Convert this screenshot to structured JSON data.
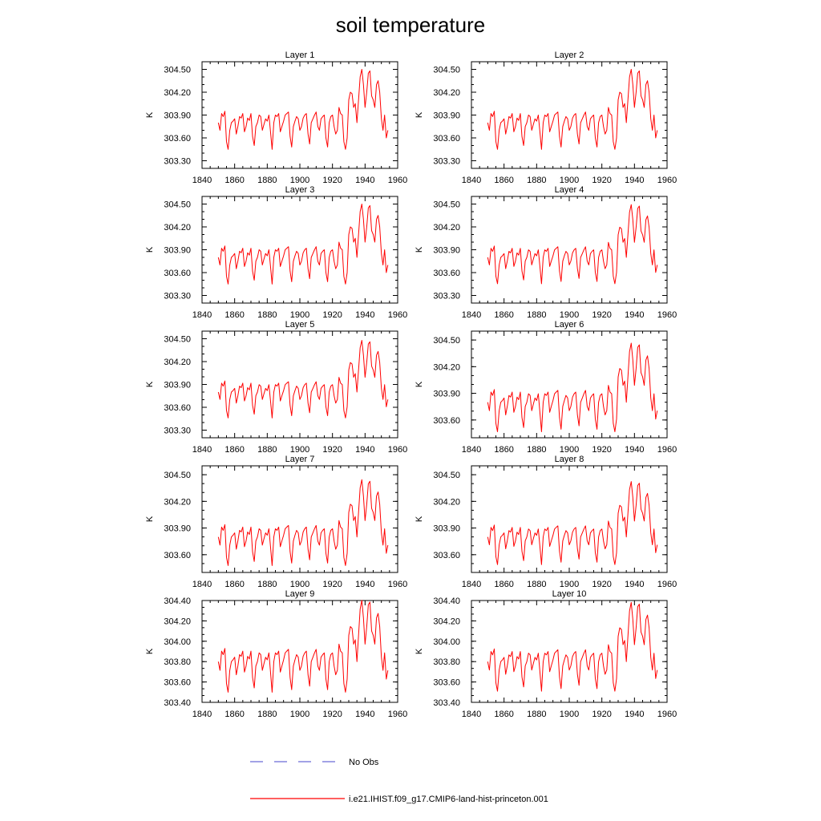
{
  "title": "soil temperature",
  "colors": {
    "model": "#ff0000",
    "obs": "#6b6bd6",
    "axis": "#000000"
  },
  "legend": [
    {
      "label": "No Obs",
      "style": "dashed",
      "color": "#6b6bd6"
    },
    {
      "label": "i.e21.IHIST.f09_g17.CMIP6-land-hist-princeton.001",
      "style": "solid",
      "color": "#ff0000"
    }
  ],
  "chart_data": [
    {
      "type": "line",
      "title": "Layer 1",
      "ylabel": "K",
      "xlim": [
        1840,
        1960
      ],
      "ylim": [
        303.2,
        304.6
      ],
      "xticks": [
        "1840",
        "1860",
        "1880",
        "1900",
        "1920",
        "1940",
        "1960"
      ],
      "yticks": [
        "303.30",
        "303.60",
        "303.90",
        "304.20",
        "304.50"
      ],
      "series_name": "i.e21.IHIST.f09_g17.CMIP6-land-hist-princeton.001",
      "scale": 1.0
    },
    {
      "type": "line",
      "title": "Layer 2",
      "ylabel": "K",
      "xlim": [
        1840,
        1960
      ],
      "ylim": [
        303.2,
        304.6
      ],
      "xticks": [
        "1840",
        "1860",
        "1880",
        "1900",
        "1920",
        "1940",
        "1960"
      ],
      "yticks": [
        "303.30",
        "303.60",
        "303.90",
        "304.20",
        "304.50"
      ],
      "series_name": "i.e21.IHIST.f09_g17.CMIP6-land-hist-princeton.001",
      "scale": 1.0
    },
    {
      "type": "line",
      "title": "Layer 3",
      "ylabel": "K",
      "xlim": [
        1840,
        1960
      ],
      "ylim": [
        303.2,
        304.6
      ],
      "xticks": [
        "1840",
        "1860",
        "1880",
        "1900",
        "1920",
        "1940",
        "1960"
      ],
      "yticks": [
        "303.30",
        "303.60",
        "303.90",
        "304.20",
        "304.50"
      ],
      "series_name": "i.e21.IHIST.f09_g17.CMIP6-land-hist-princeton.001",
      "scale": 1.0
    },
    {
      "type": "line",
      "title": "Layer 4",
      "ylabel": "K",
      "xlim": [
        1840,
        1960
      ],
      "ylim": [
        303.2,
        304.6
      ],
      "xticks": [
        "1840",
        "1860",
        "1880",
        "1900",
        "1920",
        "1940",
        "1960"
      ],
      "yticks": [
        "303.30",
        "303.60",
        "303.90",
        "304.20",
        "304.50"
      ],
      "series_name": "i.e21.IHIST.f09_g17.CMIP6-land-hist-princeton.001",
      "scale": 0.99
    },
    {
      "type": "line",
      "title": "Layer 5",
      "ylabel": "K",
      "xlim": [
        1840,
        1960
      ],
      "ylim": [
        303.2,
        304.6
      ],
      "xticks": [
        "1840",
        "1860",
        "1880",
        "1900",
        "1920",
        "1940",
        "1960"
      ],
      "yticks": [
        "303.30",
        "303.60",
        "303.90",
        "304.20",
        "304.50"
      ],
      "series_name": "i.e21.IHIST.f09_g17.CMIP6-land-hist-princeton.001",
      "scale": 0.97
    },
    {
      "type": "line",
      "title": "Layer 6",
      "ylabel": "K",
      "xlim": [
        1840,
        1960
      ],
      "ylim": [
        303.4,
        304.6
      ],
      "xticks": [
        "1840",
        "1860",
        "1880",
        "1900",
        "1920",
        "1940",
        "1960"
      ],
      "yticks": [
        "303.60",
        "303.90",
        "304.20",
        "304.50"
      ],
      "series_name": "i.e21.IHIST.f09_g17.CMIP6-land-hist-princeton.001",
      "scale": 0.95
    },
    {
      "type": "line",
      "title": "Layer 7",
      "ylabel": "K",
      "xlim": [
        1840,
        1960
      ],
      "ylim": [
        303.4,
        304.6
      ],
      "xticks": [
        "1840",
        "1860",
        "1880",
        "1900",
        "1920",
        "1940",
        "1960"
      ],
      "yticks": [
        "303.60",
        "303.90",
        "304.20",
        "304.50"
      ],
      "series_name": "i.e21.IHIST.f09_g17.CMIP6-land-hist-princeton.001",
      "scale": 0.92
    },
    {
      "type": "line",
      "title": "Layer 8",
      "ylabel": "K",
      "xlim": [
        1840,
        1960
      ],
      "ylim": [
        303.4,
        304.6
      ],
      "xticks": [
        "1840",
        "1860",
        "1880",
        "1900",
        "1920",
        "1940",
        "1960"
      ],
      "yticks": [
        "303.60",
        "303.90",
        "304.20",
        "304.50"
      ],
      "series_name": "i.e21.IHIST.f09_g17.CMIP6-land-hist-princeton.001",
      "scale": 0.89
    },
    {
      "type": "line",
      "title": "Layer 9",
      "ylabel": "K",
      "xlim": [
        1840,
        1960
      ],
      "ylim": [
        303.4,
        304.4
      ],
      "xticks": [
        "1840",
        "1860",
        "1880",
        "1900",
        "1920",
        "1940",
        "1960"
      ],
      "yticks": [
        "303.40",
        "303.60",
        "303.80",
        "304.00",
        "304.20",
        "304.40"
      ],
      "series_name": "i.e21.IHIST.f09_g17.CMIP6-land-hist-princeton.001",
      "scale": 0.86
    },
    {
      "type": "line",
      "title": "Layer 10",
      "ylabel": "K",
      "xlim": [
        1840,
        1960
      ],
      "ylim": [
        303.4,
        304.4
      ],
      "xticks": [
        "1840",
        "1860",
        "1880",
        "1900",
        "1920",
        "1940",
        "1960"
      ],
      "yticks": [
        "303.40",
        "303.60",
        "303.80",
        "304.00",
        "304.20",
        "304.40"
      ],
      "series_name": "i.e21.IHIST.f09_g17.CMIP6-land-hist-princeton.001",
      "scale": 0.83
    }
  ],
  "base_series": {
    "x": [
      1850,
      1851,
      1852,
      1853,
      1854,
      1855,
      1856,
      1857,
      1858,
      1859,
      1860,
      1861,
      1862,
      1863,
      1864,
      1865,
      1866,
      1867,
      1868,
      1869,
      1870,
      1871,
      1872,
      1873,
      1874,
      1875,
      1876,
      1877,
      1878,
      1879,
      1880,
      1881,
      1882,
      1883,
      1884,
      1885,
      1886,
      1887,
      1888,
      1889,
      1890,
      1891,
      1892,
      1893,
      1894,
      1895,
      1896,
      1897,
      1898,
      1899,
      1900,
      1901,
      1902,
      1903,
      1904,
      1905,
      1906,
      1907,
      1908,
      1909,
      1910,
      1911,
      1912,
      1913,
      1914,
      1915,
      1916,
      1917,
      1918,
      1919,
      1920,
      1921,
      1922,
      1923,
      1924,
      1925,
      1926,
      1927,
      1928,
      1929,
      1930,
      1931,
      1932,
      1933,
      1934,
      1935,
      1936,
      1937,
      1938,
      1939,
      1940,
      1941,
      1942,
      1943,
      1944,
      1945,
      1946,
      1947,
      1948,
      1949,
      1950,
      1951,
      1952,
      1953,
      1954
    ],
    "anomaly": [
      0.0,
      -0.1,
      0.12,
      0.08,
      0.15,
      -0.25,
      -0.35,
      -0.1,
      0.0,
      0.02,
      0.05,
      -0.15,
      -0.05,
      0.08,
      0.06,
      0.12,
      -0.12,
      -0.05,
      0.06,
      0.03,
      0.12,
      -0.18,
      -0.3,
      -0.05,
      0.0,
      0.1,
      0.08,
      -0.1,
      -0.02,
      0.05,
      0.02,
      0.1,
      -0.12,
      -0.35,
      0.0,
      0.1,
      0.08,
      0.12,
      -0.12,
      -0.05,
      0.02,
      0.1,
      0.12,
      0.14,
      -0.18,
      -0.32,
      -0.05,
      0.02,
      0.08,
      0.05,
      -0.1,
      -0.05,
      0.06,
      0.1,
      0.12,
      -0.15,
      -0.28,
      0.0,
      0.05,
      0.1,
      0.14,
      -0.05,
      -0.1,
      0.05,
      0.08,
      0.1,
      -0.2,
      -0.32,
      0.0,
      0.08,
      0.1,
      -0.05,
      -0.15,
      -0.1,
      0.2,
      0.12,
      0.1,
      -0.25,
      -0.35,
      -0.2,
      0.3,
      0.4,
      0.38,
      0.2,
      0.25,
      0.0,
      0.3,
      0.6,
      0.7,
      0.5,
      0.2,
      0.4,
      0.65,
      0.68,
      0.35,
      0.3,
      0.2,
      0.5,
      0.55,
      0.4,
      0.05,
      -0.1,
      0.1,
      -0.2,
      -0.1
    ]
  }
}
